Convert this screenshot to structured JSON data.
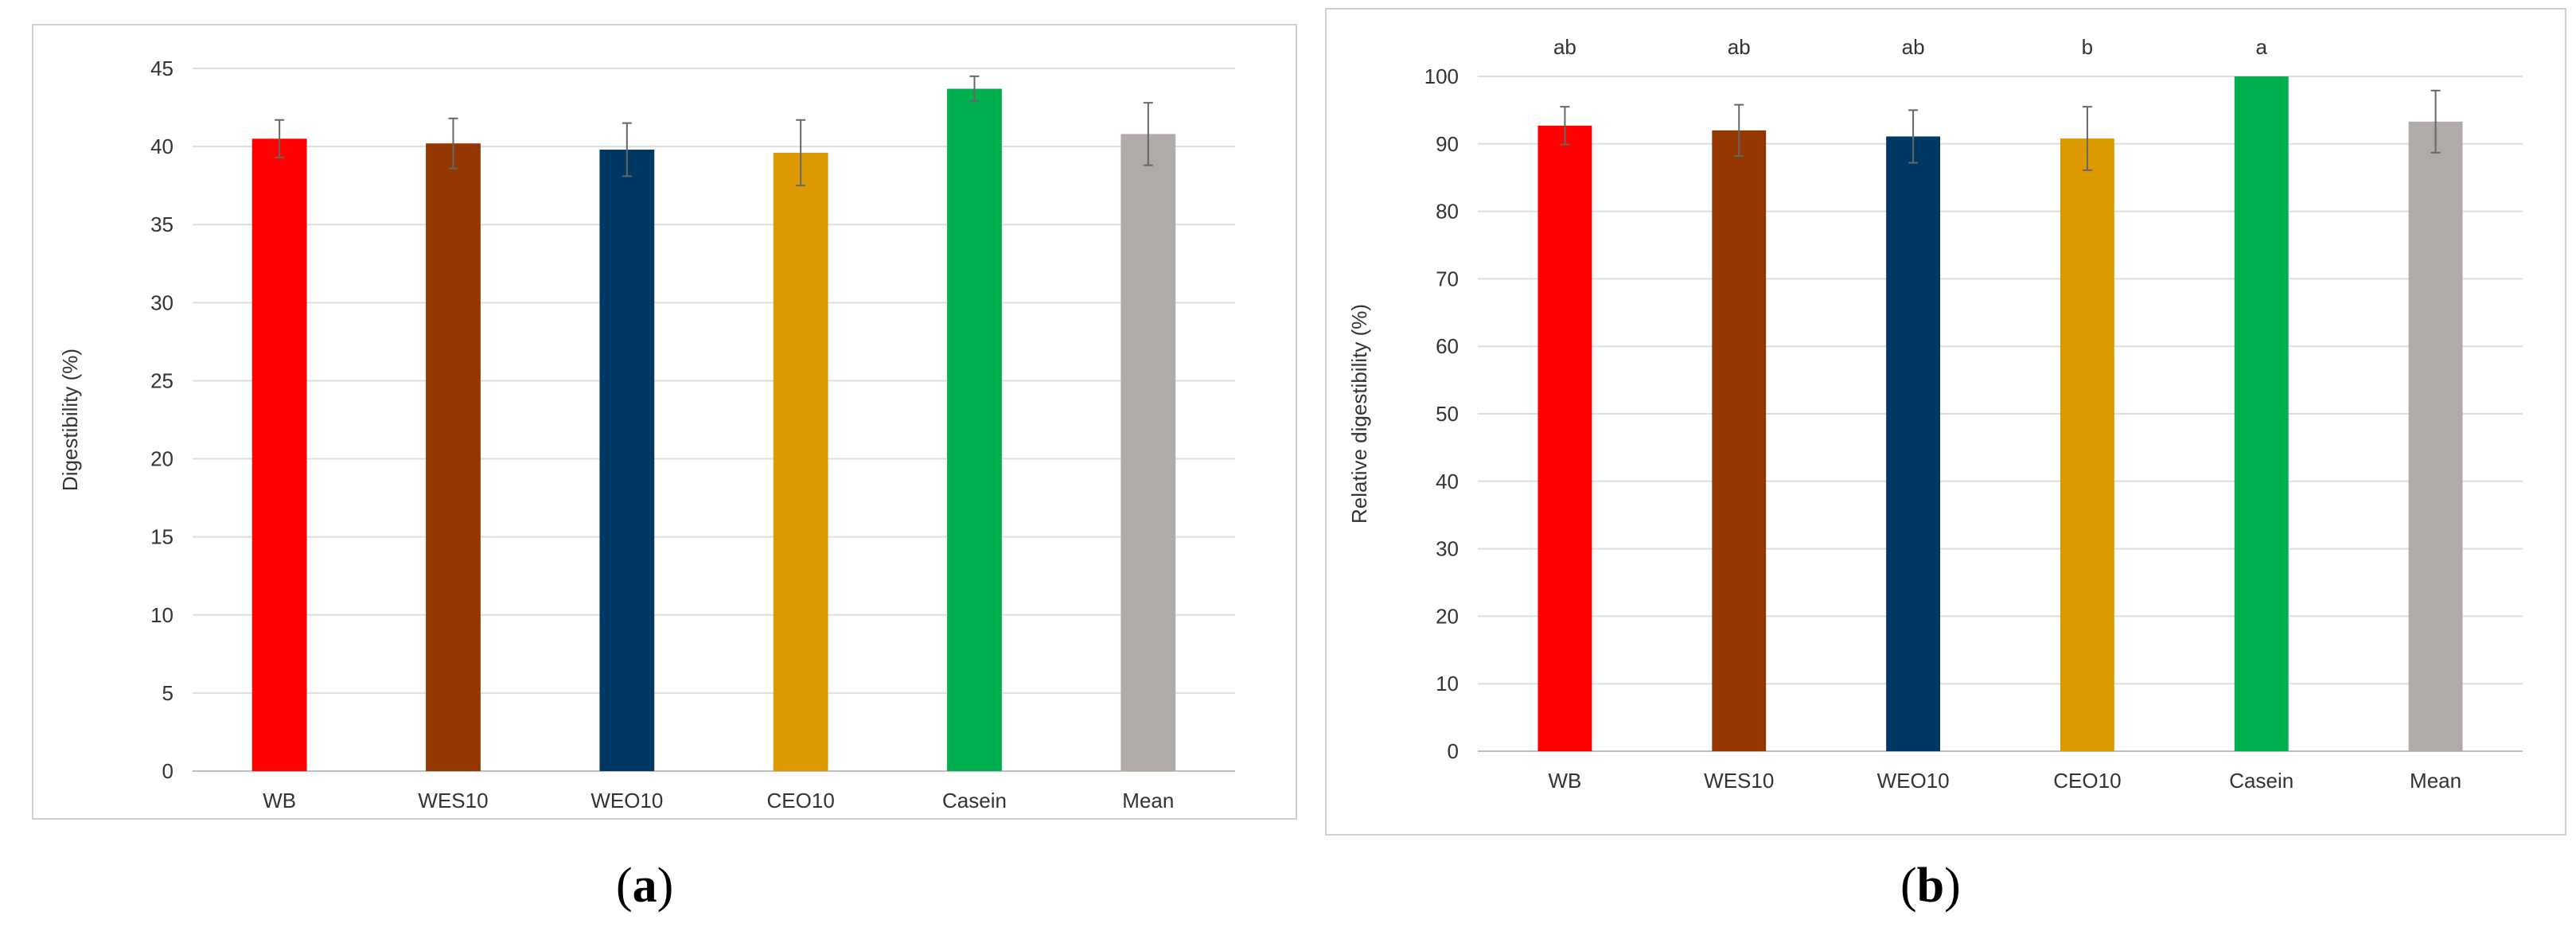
{
  "captions": {
    "a": "a",
    "b": "b"
  },
  "chart_data": [
    {
      "type": "bar",
      "ylabel": "Digestibility (%)",
      "categories": [
        "WB",
        "WES10",
        "WEO10",
        "CEO10",
        "Casein",
        "Mean"
      ],
      "values": [
        40.5,
        40.2,
        39.8,
        39.6,
        43.7,
        40.8
      ],
      "errors": [
        1.2,
        1.6,
        1.7,
        2.1,
        0.8,
        2.0
      ],
      "colors": [
        "#ff0000",
        "#943600",
        "#003864",
        "#dd9900",
        "#00b04f",
        "#b0aba8"
      ],
      "ylim": [
        0,
        45
      ],
      "yticks": [
        0,
        5,
        10,
        15,
        20,
        25,
        30,
        35,
        40,
        45
      ],
      "grid": true
    },
    {
      "type": "bar",
      "ylabel": "Relative digestibility (%)",
      "categories": [
        "WB",
        "WES10",
        "WEO10",
        "CEO10",
        "Casein",
        "Mean"
      ],
      "values": [
        92.7,
        92.0,
        91.1,
        90.8,
        100.0,
        93.3
      ],
      "errors": [
        2.8,
        3.8,
        3.9,
        4.7,
        0.0,
        4.6
      ],
      "letters": [
        "ab",
        "ab",
        "ab",
        "b",
        "a",
        ""
      ],
      "colors": [
        "#ff0000",
        "#943600",
        "#003864",
        "#dd9900",
        "#00b04f",
        "#b0aba8"
      ],
      "ylim": [
        0,
        100
      ],
      "yticks": [
        0,
        10,
        20,
        30,
        40,
        50,
        60,
        70,
        80,
        90,
        100
      ],
      "grid": true
    }
  ]
}
